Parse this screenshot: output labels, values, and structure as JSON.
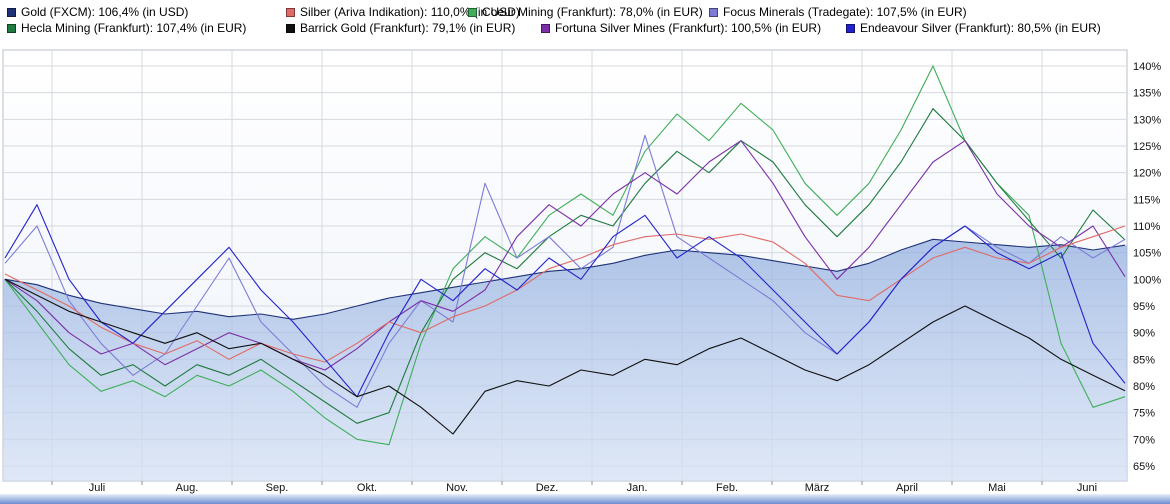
{
  "chart_data": {
    "type": "line",
    "title": "",
    "legend_position": "top",
    "grid": true,
    "x_axis": {
      "labels": [
        "Juli",
        "Aug.",
        "Sep.",
        "Okt.",
        "Nov.",
        "Dez.",
        "Jan.",
        "Feb.",
        "März",
        "April",
        "Mai",
        "Juni"
      ]
    },
    "y_axis": {
      "min": 65,
      "max": 140,
      "step": 5,
      "unit": "%",
      "tick_labels": [
        "65%",
        "70%",
        "75%",
        "80%",
        "85%",
        "90%",
        "95%",
        "100%",
        "105%",
        "110%",
        "115%",
        "120%",
        "125%",
        "130%",
        "135%",
        "140%"
      ]
    },
    "series": [
      {
        "name": "Gold",
        "market": "FXCM",
        "currency": "USD",
        "final_pct": 106.4,
        "legend_label": "Gold (FXCM): 106,4% (in USD)",
        "color": "#1f3278",
        "area_fill": true,
        "values": [
          100,
          99,
          97,
          95.5,
          94.5,
          93.5,
          94,
          93,
          93.5,
          92.5,
          93.5,
          95,
          96.5,
          97.5,
          98.5,
          99.5,
          100.5,
          101.5,
          102,
          103,
          104.5,
          105.5,
          105,
          104.5,
          103.5,
          102.5,
          101.5,
          103,
          105.5,
          107.5,
          107,
          106.5,
          106,
          106.5,
          105.5,
          106.4
        ]
      },
      {
        "name": "Silber",
        "market": "Ariva Indikation",
        "currency": "USD",
        "final_pct": 110.0,
        "legend_label": "Silber (Ariva Indikation): 110,0% (in USD)",
        "color": "#e06a66",
        "area_fill": false,
        "values": [
          101,
          98,
          95,
          91,
          88,
          86,
          88.5,
          85,
          88,
          86,
          84.5,
          88,
          92,
          90,
          93,
          95,
          98,
          102,
          104,
          106.5,
          108,
          108.5,
          107.5,
          108.5,
          107,
          103,
          97,
          96,
          100,
          104,
          106,
          104,
          103,
          106,
          108,
          110
        ]
      },
      {
        "name": "Coeur Mining",
        "market": "Frankfurt",
        "currency": "EUR",
        "final_pct": 78.0,
        "legend_label": "Coeur Mining (Frankfurt): 78,0% (in EUR)",
        "color": "#3fae5a",
        "area_fill": false,
        "values": [
          100,
          92,
          84,
          79,
          81,
          78,
          82,
          80,
          83,
          79,
          74,
          70,
          69,
          88,
          102,
          108,
          104,
          112,
          116,
          112,
          124,
          131,
          126,
          133,
          128,
          118,
          112,
          118,
          128,
          140,
          126,
          118,
          112,
          88,
          76,
          78
        ]
      },
      {
        "name": "Focus Minerals",
        "market": "Tradegate",
        "currency": "EUR",
        "final_pct": 107.5,
        "legend_label": "Focus Minerals (Tradegate): 107,5% (in EUR)",
        "color": "#7c7cd6",
        "area_fill": false,
        "values": [
          103,
          110,
          96,
          88,
          82,
          86,
          95,
          104,
          92,
          86,
          80,
          76,
          88,
          96,
          92,
          118,
          104,
          108,
          102,
          106,
          127,
          108,
          104,
          100,
          96,
          90,
          86,
          92,
          100,
          106,
          110,
          106,
          103,
          108,
          104,
          107.5
        ]
      },
      {
        "name": "Hecla Mining",
        "market": "Frankfurt",
        "currency": "EUR",
        "final_pct": 107.4,
        "legend_label": "Hecla Mining (Frankfurt): 107,4% (in EUR)",
        "color": "#1e7a3e",
        "area_fill": false,
        "values": [
          100,
          94,
          87,
          82,
          84,
          80,
          84,
          82,
          85,
          81,
          77,
          73,
          75,
          90,
          100,
          105,
          102,
          108,
          112,
          110,
          118,
          124,
          120,
          126,
          122,
          114,
          108,
          114,
          122,
          132,
          126,
          118,
          111,
          104,
          113,
          107.4
        ]
      },
      {
        "name": "Barrick Gold",
        "market": "Frankfurt",
        "currency": "EUR",
        "final_pct": 79.1,
        "legend_label": "Barrick Gold (Frankfurt): 79,1% (in EUR)",
        "color": "#101010",
        "area_fill": false,
        "values": [
          100,
          97,
          94,
          92,
          90,
          88,
          90,
          87,
          88,
          85,
          82,
          78,
          80,
          76,
          71,
          79,
          81,
          80,
          83,
          82,
          85,
          84,
          87,
          89,
          86,
          83,
          81,
          84,
          88,
          92,
          95,
          92,
          89,
          85,
          82,
          79.1
        ]
      },
      {
        "name": "Fortuna Silver Mines",
        "market": "Frankfurt",
        "currency": "EUR",
        "final_pct": 100.5,
        "legend_label": "Fortuna Silver Mines (Frankfurt): 100,5% (in EUR)",
        "color": "#7b2fa6",
        "area_fill": false,
        "values": [
          100,
          96,
          90,
          86,
          88,
          84,
          87,
          90,
          88,
          85,
          83,
          87,
          92,
          96,
          94,
          98,
          108,
          114,
          110,
          116,
          120,
          116,
          122,
          126,
          118,
          108,
          100,
          106,
          114,
          122,
          126,
          116,
          110,
          106,
          110,
          100.5
        ]
      },
      {
        "name": "Endeavour Silver",
        "market": "Frankfurt",
        "currency": "EUR",
        "final_pct": 80.5,
        "legend_label": "Endeavour Silver (Frankfurt): 80,5% (in EUR)",
        "color": "#2222cc",
        "area_fill": false,
        "values": [
          104,
          114,
          100,
          92,
          88,
          94,
          100,
          106,
          98,
          92,
          85,
          78,
          90,
          100,
          96,
          102,
          98,
          104,
          100,
          108,
          112,
          104,
          108,
          104,
          98,
          92,
          86,
          92,
          100,
          106,
          110,
          105,
          102,
          105,
          88,
          80.5
        ]
      }
    ]
  }
}
